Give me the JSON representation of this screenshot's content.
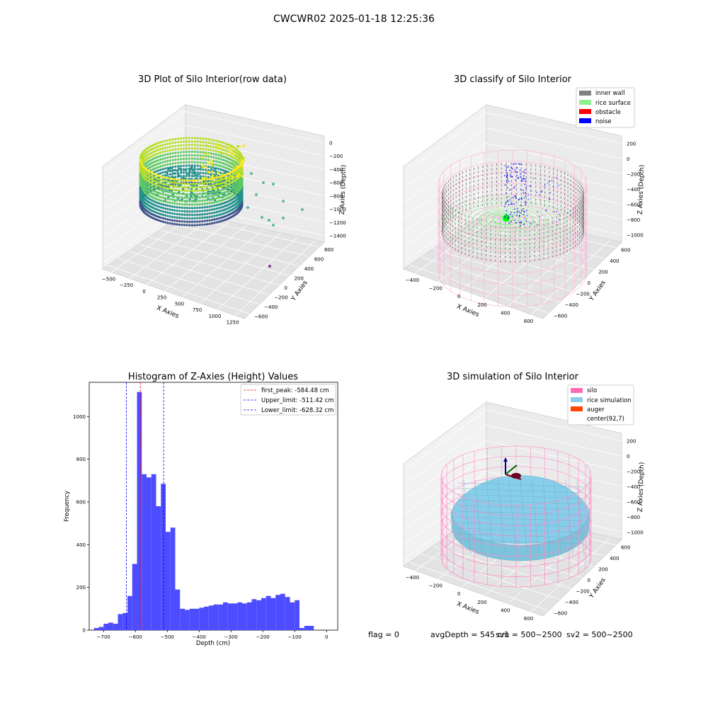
{
  "suptitle": "CWCWR02 2025-01-18 12:25:36",
  "status_line": {
    "flag": "flag = 0",
    "avg_depth": "avgDepth = 545 cm",
    "sv1": "sv1 = 500~2500",
    "sv2": "sv2 = 500~2500"
  },
  "colors": {
    "hist_bar": "#4d4dff",
    "peak_line": "#ff0000",
    "limit_line": "#0000ff",
    "inner_wall": "#808080",
    "rice_surface": "#90ee90",
    "obstacle": "#ff0000",
    "noise": "#0000ff",
    "silo": "#ff69b4",
    "rice_simulation": "#87ceeb",
    "auger": "#ff4500"
  },
  "chart_data": [
    {
      "type": "scatter3d",
      "title": "3D Plot of Silo Interior(row data)",
      "xlabel": "X Axies",
      "ylabel": "Y Axies",
      "zlabel": "Z Axies (Depth)",
      "x_ticks": [
        "−500",
        "−250",
        "0",
        "250",
        "500",
        "750",
        "1000",
        "1250"
      ],
      "y_ticks": [
        "−600",
        "−400",
        "−200",
        "0",
        "200",
        "400",
        "600",
        "800"
      ],
      "z_ticks": [
        "0",
        "−200",
        "−400",
        "−600",
        "−800",
        "−1000",
        "−1200",
        "−1400"
      ],
      "colormap": "viridis"
    },
    {
      "type": "scatter3d",
      "title": "3D classify of Silo Interior",
      "xlabel": "X Axies",
      "ylabel": "Y Axies",
      "zlabel": "Z Axies (Depth)",
      "x_ticks": [
        "−400",
        "−200",
        "0",
        "200",
        "400",
        "600"
      ],
      "y_ticks": [
        "−600",
        "−400",
        "−200",
        "0",
        "200",
        "400",
        "600"
      ],
      "z_ticks": [
        "200",
        "0",
        "−200",
        "−400",
        "−600",
        "−800",
        "−1000"
      ],
      "legend": [
        "inner wall",
        "rice surface",
        "obstacle",
        "noise"
      ],
      "legend_position": "top-right"
    },
    {
      "type": "bar",
      "title": "Histogram of Z-Axies (Height) Values",
      "xlabel": "Depth (cm)",
      "ylabel": "Frequency",
      "xlim": [
        -745,
        35
      ],
      "ylim": [
        0,
        1160
      ],
      "x_ticks": [
        -700,
        -600,
        -500,
        -400,
        -300,
        -200,
        -100,
        0
      ],
      "y_ticks": [
        0,
        200,
        400,
        600,
        800,
        1000
      ],
      "bin_start": -730,
      "bin_width": 15,
      "values": [
        10,
        15,
        30,
        35,
        30,
        75,
        80,
        160,
        310,
        1115,
        730,
        715,
        730,
        580,
        685,
        460,
        480,
        190,
        100,
        95,
        100,
        100,
        105,
        110,
        115,
        120,
        120,
        130,
        125,
        125,
        130,
        125,
        130,
        145,
        140,
        150,
        160,
        150,
        165,
        170,
        155,
        130,
        140,
        10,
        20,
        20
      ],
      "vlines": [
        {
          "label": "first_peak: -584.48 cm",
          "x": -584.48,
          "kind": "peak"
        },
        {
          "label": "Upper_limit: -511.42 cm",
          "x": -511.42,
          "kind": "limit"
        },
        {
          "label": "Lower_limit: -628.32 cm",
          "x": -628.32,
          "kind": "limit"
        }
      ],
      "legend_position": "top-right"
    },
    {
      "type": "surface3d",
      "title": "3D simulation of Silo Interior",
      "xlabel": "X Axies",
      "ylabel": "Y Axies",
      "zlabel": "Z Axies (Depth)",
      "x_ticks": [
        "−400",
        "−200",
        "0",
        "200",
        "400",
        "600"
      ],
      "y_ticks": [
        "−600",
        "−400",
        "−200",
        "0",
        "200",
        "400",
        "600"
      ],
      "z_ticks": [
        "200",
        "0",
        "−200",
        "−400",
        "−600",
        "−800",
        "−1000"
      ],
      "legend": [
        "silo",
        "rice simulation",
        "auger",
        "center(92,7)"
      ],
      "legend_position": "top-right"
    }
  ]
}
